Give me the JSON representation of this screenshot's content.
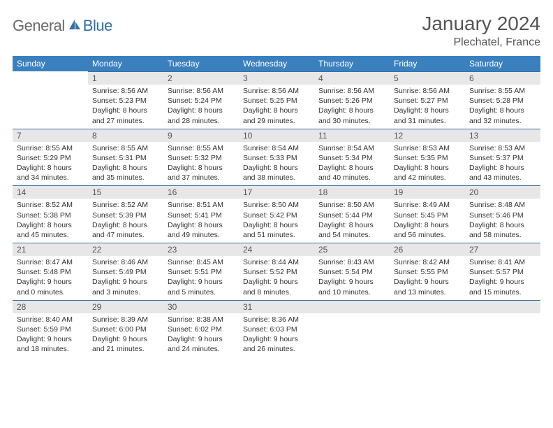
{
  "logo": {
    "general": "General",
    "blue": "Blue"
  },
  "title": {
    "month": "January 2024",
    "location": "Plechatel, France"
  },
  "colors": {
    "header_bg": "#3a80bf",
    "header_text": "#ffffff",
    "daynum_bg": "#e7e7e7",
    "border": "#3a6fa0",
    "logo_general": "#6a6a6a",
    "logo_blue": "#2f6fa8",
    "title_color": "#555555",
    "text": "#333333"
  },
  "weekdays": [
    "Sunday",
    "Monday",
    "Tuesday",
    "Wednesday",
    "Thursday",
    "Friday",
    "Saturday"
  ],
  "weeks": [
    [
      {
        "n": "",
        "sr": "",
        "ss": "",
        "dl": ""
      },
      {
        "n": "1",
        "sr": "Sunrise: 8:56 AM",
        "ss": "Sunset: 5:23 PM",
        "dl": "Daylight: 8 hours and 27 minutes."
      },
      {
        "n": "2",
        "sr": "Sunrise: 8:56 AM",
        "ss": "Sunset: 5:24 PM",
        "dl": "Daylight: 8 hours and 28 minutes."
      },
      {
        "n": "3",
        "sr": "Sunrise: 8:56 AM",
        "ss": "Sunset: 5:25 PM",
        "dl": "Daylight: 8 hours and 29 minutes."
      },
      {
        "n": "4",
        "sr": "Sunrise: 8:56 AM",
        "ss": "Sunset: 5:26 PM",
        "dl": "Daylight: 8 hours and 30 minutes."
      },
      {
        "n": "5",
        "sr": "Sunrise: 8:56 AM",
        "ss": "Sunset: 5:27 PM",
        "dl": "Daylight: 8 hours and 31 minutes."
      },
      {
        "n": "6",
        "sr": "Sunrise: 8:55 AM",
        "ss": "Sunset: 5:28 PM",
        "dl": "Daylight: 8 hours and 32 minutes."
      }
    ],
    [
      {
        "n": "7",
        "sr": "Sunrise: 8:55 AM",
        "ss": "Sunset: 5:29 PM",
        "dl": "Daylight: 8 hours and 34 minutes."
      },
      {
        "n": "8",
        "sr": "Sunrise: 8:55 AM",
        "ss": "Sunset: 5:31 PM",
        "dl": "Daylight: 8 hours and 35 minutes."
      },
      {
        "n": "9",
        "sr": "Sunrise: 8:55 AM",
        "ss": "Sunset: 5:32 PM",
        "dl": "Daylight: 8 hours and 37 minutes."
      },
      {
        "n": "10",
        "sr": "Sunrise: 8:54 AM",
        "ss": "Sunset: 5:33 PM",
        "dl": "Daylight: 8 hours and 38 minutes."
      },
      {
        "n": "11",
        "sr": "Sunrise: 8:54 AM",
        "ss": "Sunset: 5:34 PM",
        "dl": "Daylight: 8 hours and 40 minutes."
      },
      {
        "n": "12",
        "sr": "Sunrise: 8:53 AM",
        "ss": "Sunset: 5:35 PM",
        "dl": "Daylight: 8 hours and 42 minutes."
      },
      {
        "n": "13",
        "sr": "Sunrise: 8:53 AM",
        "ss": "Sunset: 5:37 PM",
        "dl": "Daylight: 8 hours and 43 minutes."
      }
    ],
    [
      {
        "n": "14",
        "sr": "Sunrise: 8:52 AM",
        "ss": "Sunset: 5:38 PM",
        "dl": "Daylight: 8 hours and 45 minutes."
      },
      {
        "n": "15",
        "sr": "Sunrise: 8:52 AM",
        "ss": "Sunset: 5:39 PM",
        "dl": "Daylight: 8 hours and 47 minutes."
      },
      {
        "n": "16",
        "sr": "Sunrise: 8:51 AM",
        "ss": "Sunset: 5:41 PM",
        "dl": "Daylight: 8 hours and 49 minutes."
      },
      {
        "n": "17",
        "sr": "Sunrise: 8:50 AM",
        "ss": "Sunset: 5:42 PM",
        "dl": "Daylight: 8 hours and 51 minutes."
      },
      {
        "n": "18",
        "sr": "Sunrise: 8:50 AM",
        "ss": "Sunset: 5:44 PM",
        "dl": "Daylight: 8 hours and 54 minutes."
      },
      {
        "n": "19",
        "sr": "Sunrise: 8:49 AM",
        "ss": "Sunset: 5:45 PM",
        "dl": "Daylight: 8 hours and 56 minutes."
      },
      {
        "n": "20",
        "sr": "Sunrise: 8:48 AM",
        "ss": "Sunset: 5:46 PM",
        "dl": "Daylight: 8 hours and 58 minutes."
      }
    ],
    [
      {
        "n": "21",
        "sr": "Sunrise: 8:47 AM",
        "ss": "Sunset: 5:48 PM",
        "dl": "Daylight: 9 hours and 0 minutes."
      },
      {
        "n": "22",
        "sr": "Sunrise: 8:46 AM",
        "ss": "Sunset: 5:49 PM",
        "dl": "Daylight: 9 hours and 3 minutes."
      },
      {
        "n": "23",
        "sr": "Sunrise: 8:45 AM",
        "ss": "Sunset: 5:51 PM",
        "dl": "Daylight: 9 hours and 5 minutes."
      },
      {
        "n": "24",
        "sr": "Sunrise: 8:44 AM",
        "ss": "Sunset: 5:52 PM",
        "dl": "Daylight: 9 hours and 8 minutes."
      },
      {
        "n": "25",
        "sr": "Sunrise: 8:43 AM",
        "ss": "Sunset: 5:54 PM",
        "dl": "Daylight: 9 hours and 10 minutes."
      },
      {
        "n": "26",
        "sr": "Sunrise: 8:42 AM",
        "ss": "Sunset: 5:55 PM",
        "dl": "Daylight: 9 hours and 13 minutes."
      },
      {
        "n": "27",
        "sr": "Sunrise: 8:41 AM",
        "ss": "Sunset: 5:57 PM",
        "dl": "Daylight: 9 hours and 15 minutes."
      }
    ],
    [
      {
        "n": "28",
        "sr": "Sunrise: 8:40 AM",
        "ss": "Sunset: 5:59 PM",
        "dl": "Daylight: 9 hours and 18 minutes."
      },
      {
        "n": "29",
        "sr": "Sunrise: 8:39 AM",
        "ss": "Sunset: 6:00 PM",
        "dl": "Daylight: 9 hours and 21 minutes."
      },
      {
        "n": "30",
        "sr": "Sunrise: 8:38 AM",
        "ss": "Sunset: 6:02 PM",
        "dl": "Daylight: 9 hours and 24 minutes."
      },
      {
        "n": "31",
        "sr": "Sunrise: 8:36 AM",
        "ss": "Sunset: 6:03 PM",
        "dl": "Daylight: 9 hours and 26 minutes."
      },
      {
        "n": "",
        "sr": "",
        "ss": "",
        "dl": ""
      },
      {
        "n": "",
        "sr": "",
        "ss": "",
        "dl": ""
      },
      {
        "n": "",
        "sr": "",
        "ss": "",
        "dl": ""
      }
    ]
  ]
}
